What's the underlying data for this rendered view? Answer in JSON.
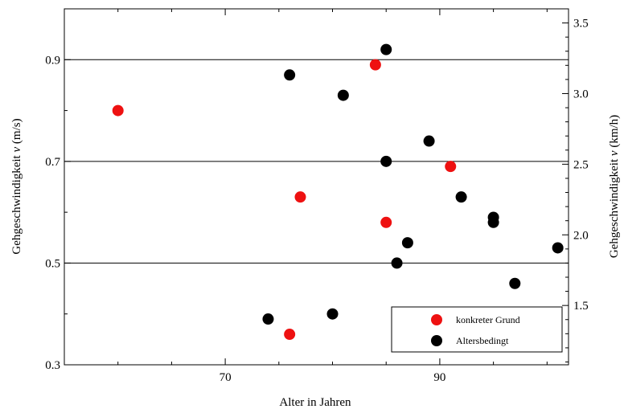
{
  "chart_data": {
    "type": "scatter",
    "title": "",
    "xlabel": "Alter in Jahren",
    "ylabel": "Gehgeschwindigkeit v (m/s)",
    "ylabel_prefix": "Gehgeschwindigkeit ",
    "ylabel_var": "v",
    "ylabel_unit": " (m/s)",
    "y2label": "Gehgeschwindigkeit v (km/h)",
    "y2label_prefix": "Gehgeschwindigkeit ",
    "y2label_var": "v",
    "y2label_unit": " (km/h)",
    "xlim": [
      55,
      102
    ],
    "ylim": [
      0.3,
      1.0
    ],
    "y2lim": [
      1.08,
      3.6
    ],
    "x_ticks": [
      70,
      90
    ],
    "x_tick_labels": [
      "70",
      "90"
    ],
    "y_ticks": [
      0.3,
      0.5,
      0.7,
      0.9
    ],
    "y_tick_labels": [
      "0.3",
      "0.5",
      "0.7",
      "0.9"
    ],
    "y2_ticks": [
      1.5,
      2.0,
      2.5,
      3.0,
      3.5
    ],
    "y2_tick_labels": [
      "1.5",
      "2.0",
      "2.5",
      "3.0",
      "3.5"
    ],
    "grid": "horizontal lines at 0.5, 0.7, 0.9",
    "legend_position": "bottom-right",
    "series": [
      {
        "name": "konkreter Grund",
        "color": "#ee1111",
        "points": [
          {
            "x": 60,
            "y": 0.8
          },
          {
            "x": 84,
            "y": 0.89
          },
          {
            "x": 77,
            "y": 0.63
          },
          {
            "x": 91,
            "y": 0.69
          },
          {
            "x": 85,
            "y": 0.58
          },
          {
            "x": 76,
            "y": 0.36
          }
        ]
      },
      {
        "name": "Altersbedingt",
        "color": "#000000",
        "points": [
          {
            "x": 85,
            "y": 0.92
          },
          {
            "x": 76,
            "y": 0.87
          },
          {
            "x": 81,
            "y": 0.83
          },
          {
            "x": 89,
            "y": 0.74
          },
          {
            "x": 85,
            "y": 0.7
          },
          {
            "x": 92,
            "y": 0.63
          },
          {
            "x": 95,
            "y": 0.59
          },
          {
            "x": 95,
            "y": 0.58
          },
          {
            "x": 87,
            "y": 0.54
          },
          {
            "x": 101,
            "y": 0.53
          },
          {
            "x": 86,
            "y": 0.5
          },
          {
            "x": 97,
            "y": 0.46
          },
          {
            "x": 80,
            "y": 0.4
          },
          {
            "x": 74,
            "y": 0.39
          }
        ]
      }
    ]
  }
}
